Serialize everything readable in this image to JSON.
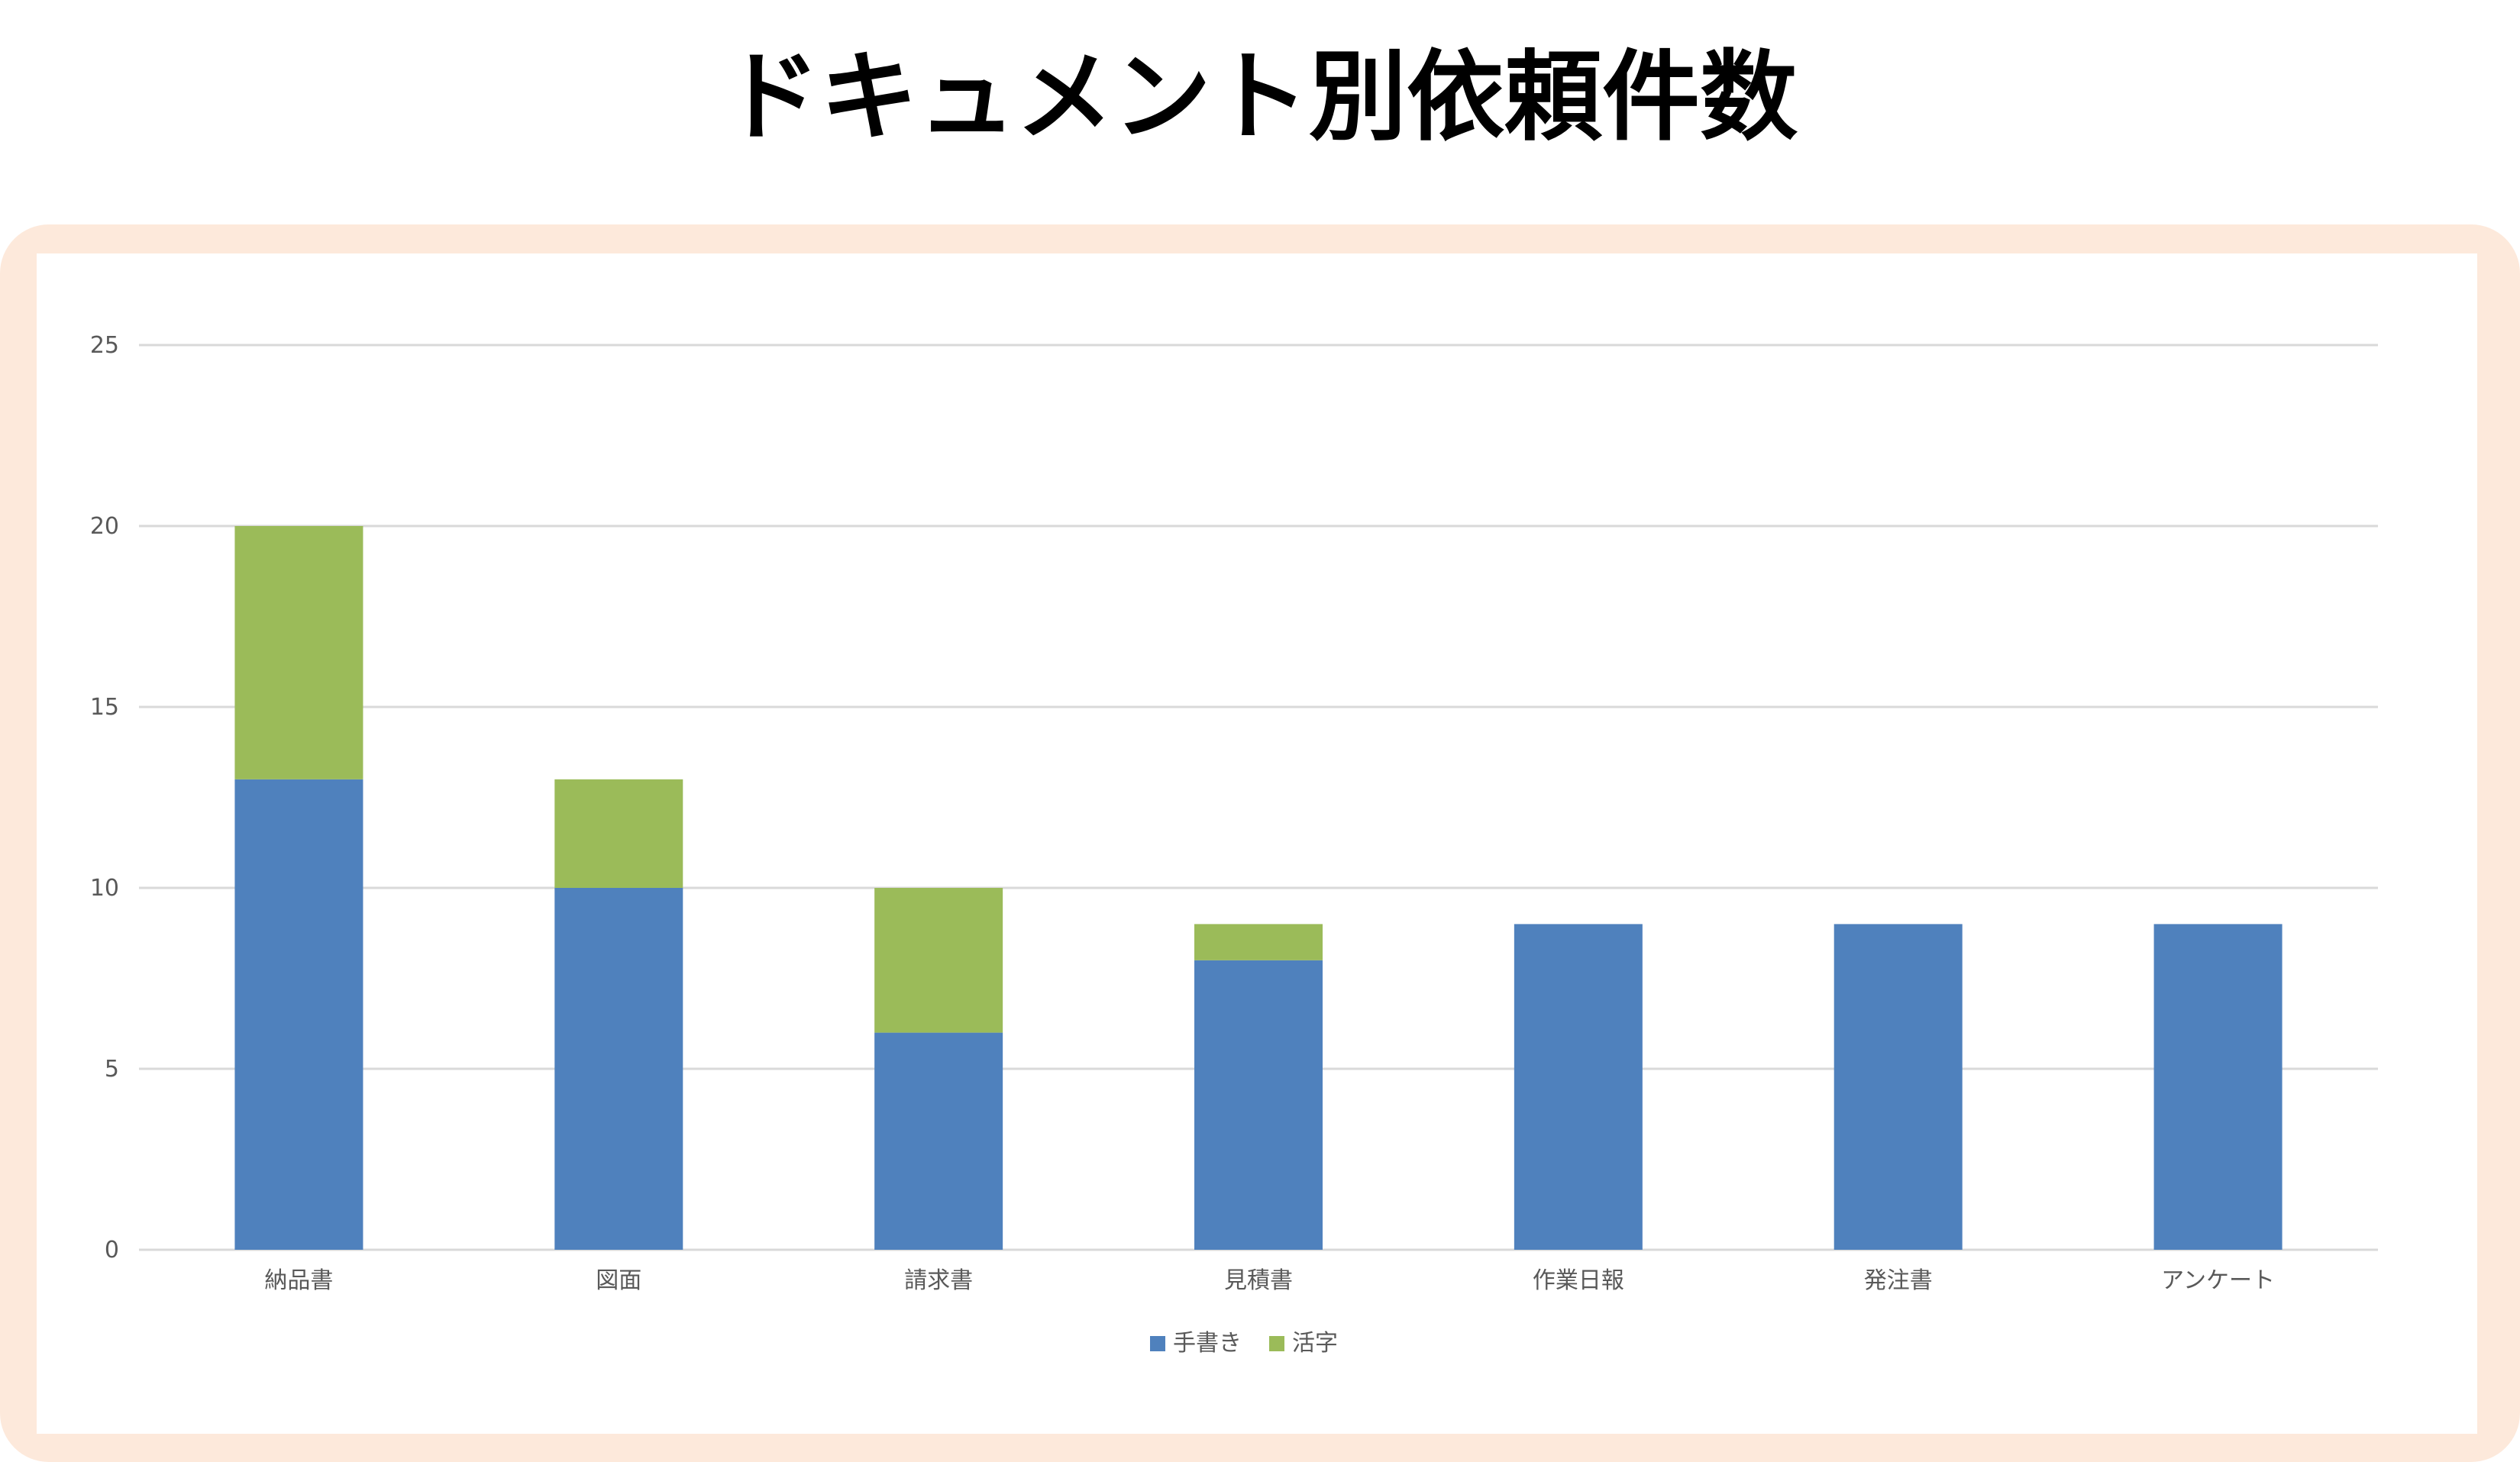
{
  "title": "ドキュメント別依頼件数",
  "colors": {
    "frame": "#fde9db",
    "handwritten": "#4f81bd",
    "printed": "#9bbb59",
    "grid": "#d9d9d9",
    "axis_text": "#595959"
  },
  "chart_data": {
    "type": "bar",
    "stacked": true,
    "categories": [
      "納品書",
      "図面",
      "請求書",
      "見積書",
      "作業日報",
      "発注書",
      "アンケート"
    ],
    "series": [
      {
        "name": "手書き",
        "values": [
          13,
          10,
          6,
          8,
          9,
          9,
          9
        ],
        "color": "#4f81bd"
      },
      {
        "name": "活字",
        "values": [
          7,
          3,
          4,
          1,
          0,
          0,
          0
        ],
        "color": "#9bbb59"
      }
    ],
    "ylim": [
      0,
      25
    ],
    "yticks": [
      0,
      5,
      10,
      15,
      20,
      25
    ],
    "grid": true,
    "legend": "bottom-center"
  }
}
